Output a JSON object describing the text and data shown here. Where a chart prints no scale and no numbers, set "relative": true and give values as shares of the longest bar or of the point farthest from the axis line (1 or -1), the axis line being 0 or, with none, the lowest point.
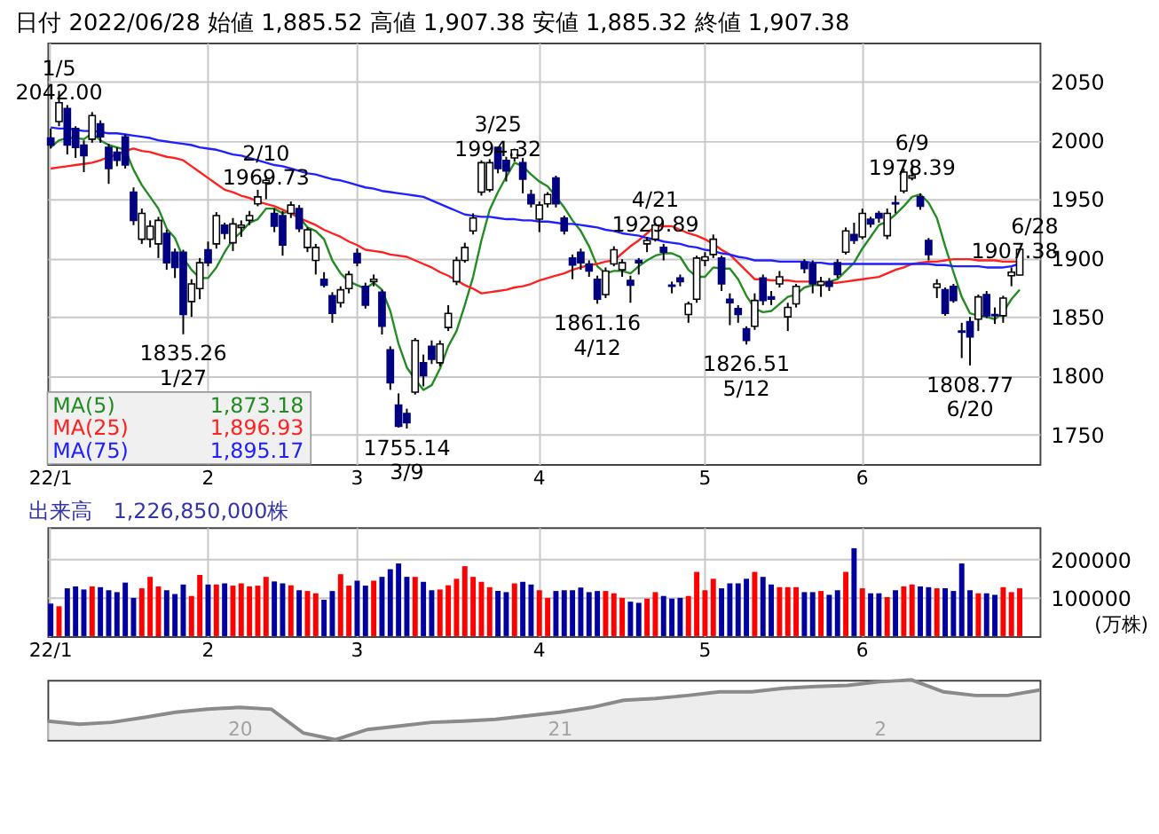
{
  "chart_data": [
    {
      "type": "candlestick",
      "title": "日付 2022/06/28  始値 1,885.52  高値 1,907.38  安値 1,885.32  終値 1,907.38",
      "categories": [
        "22/1",
        null,
        null,
        null,
        null,
        null,
        null,
        null,
        null,
        null,
        null,
        null,
        null,
        null,
        null,
        null,
        null,
        null,
        null,
        "2",
        null,
        null,
        null,
        null,
        null,
        null,
        null,
        null,
        null,
        null,
        null,
        null,
        null,
        null,
        null,
        null,
        null,
        "3",
        null,
        null,
        null,
        null,
        null,
        null,
        null,
        null,
        null,
        null,
        null,
        null,
        null,
        null,
        null,
        null,
        null,
        null,
        null,
        null,
        null,
        "4",
        null,
        null,
        null,
        null,
        null,
        null,
        null,
        null,
        null,
        null,
        null,
        null,
        null,
        null,
        null,
        null,
        null,
        null,
        null,
        "5",
        null,
        null,
        null,
        null,
        null,
        null,
        null,
        null,
        null,
        null,
        null,
        null,
        null,
        null,
        null,
        null,
        null,
        null,
        "6",
        null,
        null,
        null,
        null,
        null,
        null,
        null,
        null,
        null,
        null,
        null,
        null,
        null,
        null,
        null,
        null,
        null,
        null,
        null
      ],
      "ohlc": [
        [
          2002,
          2010,
          1993,
          1996
        ],
        [
          2016,
          2042.0,
          2012,
          2032
        ],
        [
          2027,
          2030,
          1988,
          1996
        ],
        [
          2010,
          2012,
          1985,
          1994
        ],
        [
          1996,
          2000,
          1973,
          1987
        ],
        [
          2001,
          2024,
          1998,
          2021
        ],
        [
          2014,
          2017,
          1998,
          2003
        ],
        [
          1994,
          1997,
          1963,
          1976
        ],
        [
          1990,
          1994,
          1978,
          1983
        ],
        [
          2003,
          2005,
          1976,
          1979
        ],
        [
          1956,
          1960,
          1928,
          1932
        ],
        [
          1916,
          1942,
          1912,
          1938
        ],
        [
          1916,
          1932,
          1909,
          1927
        ],
        [
          1912,
          1935,
          1900,
          1932
        ],
        [
          1921,
          1924,
          1890,
          1896
        ],
        [
          1905,
          1908,
          1883,
          1892
        ],
        [
          1905,
          1907,
          1835.26,
          1852
        ],
        [
          1863,
          1882,
          1850,
          1878
        ],
        [
          1874,
          1900,
          1865,
          1896
        ],
        [
          1907,
          1914,
          1893,
          1896
        ],
        [
          1912,
          1939,
          1908,
          1936
        ],
        [
          1928,
          1930,
          1916,
          1921
        ],
        [
          1913,
          1934,
          1906,
          1929
        ],
        [
          1926,
          1932,
          1918,
          1928
        ],
        [
          1932,
          1940,
          1928,
          1936
        ],
        [
          1946,
          1958,
          1944,
          1952
        ],
        [
          1964,
          1969.73,
          1950,
          1966
        ],
        [
          1938,
          1942,
          1922,
          1927
        ],
        [
          1936,
          1940,
          1902,
          1911
        ],
        [
          1938,
          1948,
          1934,
          1945
        ],
        [
          1942,
          1945,
          1922,
          1925
        ],
        [
          1909,
          1926,
          1905,
          1924
        ],
        [
          1898,
          1912,
          1886,
          1909
        ],
        [
          1882,
          1888,
          1875,
          1877
        ],
        [
          1868,
          1871,
          1845,
          1853
        ],
        [
          1862,
          1876,
          1858,
          1873
        ],
        [
          1874,
          1889,
          1870,
          1886
        ],
        [
          1904,
          1908,
          1893,
          1896
        ],
        [
          1876,
          1879,
          1857,
          1860
        ],
        [
          1880,
          1886,
          1876,
          1882
        ],
        [
          1871,
          1873,
          1835,
          1842
        ],
        [
          1822,
          1825,
          1788,
          1794
        ],
        [
          1775,
          1785,
          1756,
          1757
        ],
        [
          1768,
          1772,
          1755.14,
          1760
        ],
        [
          1786,
          1832,
          1784,
          1830
        ],
        [
          1811,
          1818,
          1791,
          1800
        ],
        [
          1825,
          1830,
          1810,
          1814
        ],
        [
          1811,
          1830,
          1808,
          1827
        ],
        [
          1841,
          1860,
          1838,
          1853
        ],
        [
          1880,
          1901,
          1877,
          1898
        ],
        [
          1898,
          1913,
          1896,
          1909
        ],
        [
          1923,
          1938,
          1920,
          1934
        ],
        [
          1956,
          1983,
          1953,
          1981
        ],
        [
          1958,
          1984,
          1956,
          1981
        ],
        [
          1994,
          1994.32,
          1972,
          1976
        ],
        [
          1983,
          1986,
          1965,
          1974
        ],
        [
          1985,
          1993,
          1982,
          1992
        ],
        [
          1981,
          1985,
          1955,
          1967
        ],
        [
          1954,
          1958,
          1943,
          1946
        ],
        [
          1933,
          1948,
          1922,
          1945
        ],
        [
          1946,
          1956,
          1943,
          1954
        ],
        [
          1968,
          1970,
          1943,
          1946
        ],
        [
          1934,
          1936,
          1920,
          1923
        ],
        [
          1900,
          1903,
          1882,
          1894
        ],
        [
          1905,
          1908,
          1890,
          1896
        ],
        [
          1895,
          1898,
          1884,
          1889
        ],
        [
          1882,
          1885,
          1861.16,
          1865
        ],
        [
          1869,
          1892,
          1866,
          1889
        ],
        [
          1895,
          1910,
          1893,
          1907
        ],
        [
          1890,
          1899,
          1884,
          1896
        ],
        [
          1881,
          1885,
          1862,
          1877
        ],
        [
          1898,
          1900,
          1886,
          1896
        ],
        [
          1912,
          1918,
          1905,
          1915
        ],
        [
          1916,
          1929.89,
          1914,
          1928
        ],
        [
          1909,
          1912,
          1898,
          1905
        ],
        [
          1877,
          1880,
          1870,
          1876
        ],
        [
          1883,
          1886,
          1876,
          1880
        ],
        [
          1852,
          1863,
          1845,
          1861
        ],
        [
          1865,
          1902,
          1862,
          1900
        ],
        [
          1898,
          1905,
          1893,
          1901
        ],
        [
          1903,
          1920,
          1900,
          1916
        ],
        [
          1900,
          1902,
          1872,
          1878
        ],
        [
          1865,
          1870,
          1843,
          1862
        ],
        [
          1857,
          1860,
          1845,
          1852
        ],
        [
          1840,
          1842,
          1826.51,
          1830
        ],
        [
          1842,
          1870,
          1839,
          1864
        ],
        [
          1883,
          1886,
          1860,
          1864
        ],
        [
          1867,
          1872,
          1860,
          1865
        ],
        [
          1878,
          1889,
          1875,
          1884
        ],
        [
          1850,
          1862,
          1838,
          1858
        ],
        [
          1861,
          1878,
          1858,
          1876
        ],
        [
          1896,
          1899,
          1887,
          1891
        ],
        [
          1895,
          1898,
          1870,
          1878
        ],
        [
          1877,
          1884,
          1867,
          1880
        ],
        [
          1880,
          1883,
          1872,
          1876
        ],
        [
          1896,
          1899,
          1883,
          1886
        ],
        [
          1905,
          1926,
          1903,
          1923
        ],
        [
          1920,
          1930,
          1912,
          1915
        ],
        [
          1918,
          1942,
          1916,
          1938
        ],
        [
          1933,
          1935,
          1926,
          1929
        ],
        [
          1938,
          1940,
          1930,
          1934
        ],
        [
          1919,
          1942,
          1916,
          1938
        ],
        [
          1947,
          1953,
          1938,
          1946
        ],
        [
          1957,
          1976,
          1955,
          1973
        ],
        [
          1968,
          1978.39,
          1966,
          1970
        ],
        [
          1952,
          1955,
          1941,
          1944
        ],
        [
          1915,
          1917,
          1898,
          1903
        ],
        [
          1875,
          1882,
          1866,
          1878
        ],
        [
          1873,
          1875,
          1851,
          1853
        ],
        [
          1876,
          1878,
          1862,
          1864
        ],
        [
          1838,
          1845,
          1815,
          1837
        ],
        [
          1846,
          1850,
          1808.77,
          1833
        ],
        [
          1848,
          1869,
          1838,
          1867
        ],
        [
          1869,
          1872,
          1849,
          1851
        ],
        [
          1852,
          1858,
          1844,
          1851
        ],
        [
          1851,
          1868,
          1845,
          1866
        ],
        [
          1885,
          1892,
          1876,
          1888
        ],
        [
          1885.52,
          1907.38,
          1885.32,
          1907.38
        ]
      ],
      "series": [
        {
          "name": "MA(5)",
          "type": "line",
          "color": "#228b22",
          "values": [
            1994,
            2000,
            2002,
            2002,
            2001,
            2006,
            2000,
            1996,
            1994,
            1992,
            1975,
            1962,
            1952,
            1942,
            1925,
            1917,
            1900,
            1890,
            1883,
            1883,
            1892,
            1905,
            1916,
            1922,
            1930,
            1933,
            1942,
            1942,
            1938,
            1940,
            1935,
            1926,
            1923,
            1916,
            1898,
            1887,
            1880,
            1877,
            1874,
            1879,
            1873,
            1855,
            1827,
            1807,
            1797,
            1788,
            1792,
            1806,
            1825,
            1838,
            1860,
            1884,
            1915,
            1941,
            1956,
            1969,
            1981,
            1978,
            1971,
            1965,
            1961,
            1952,
            1943,
            1932,
            1923,
            1910,
            1893,
            1887,
            1889,
            1889,
            1887,
            1893,
            1898,
            1902,
            1904,
            1904,
            1901,
            1890,
            1884,
            1884,
            1892,
            1891,
            1891,
            1882,
            1868,
            1857,
            1854,
            1855,
            1861,
            1867,
            1869,
            1875,
            1877,
            1877,
            1880,
            1882,
            1889,
            1896,
            1908,
            1918,
            1928,
            1931,
            1937,
            1944,
            1952,
            1954,
            1947,
            1934,
            1910,
            1888,
            1867,
            1853,
            1851,
            1850,
            1848,
            1854,
            1865,
            1873.18
          ]
        },
        {
          "name": "MA(25)",
          "type": "line",
          "color": "#ff2020",
          "values": [
            1976,
            1977,
            1978,
            1979,
            1980,
            1981,
            1983,
            1986,
            1988,
            1991,
            1993,
            1991,
            1990,
            1988,
            1986,
            1985,
            1983,
            1978,
            1973,
            1968,
            1963,
            1958,
            1956,
            1953,
            1951,
            1948,
            1946,
            1944,
            1941,
            1938,
            1934,
            1931,
            1928,
            1924,
            1921,
            1918,
            1914,
            1911,
            1907,
            1906,
            1905,
            1903,
            1902,
            1901,
            1898,
            1895,
            1892,
            1888,
            1885,
            1881,
            1877,
            1874,
            1870,
            1871,
            1872,
            1873,
            1875,
            1876,
            1878,
            1881,
            1883,
            1885,
            1887,
            1890,
            1892,
            1894,
            1895,
            1897,
            1898,
            1904,
            1910,
            1915,
            1921,
            1927,
            1927,
            1927,
            1924,
            1921,
            1919,
            1916,
            1912,
            1907,
            1903,
            1896,
            1889,
            1882,
            1882,
            1881,
            1881,
            1881,
            1880,
            1880,
            1880,
            1879,
            1879,
            1879,
            1880,
            1881,
            1882,
            1883,
            1884,
            1887,
            1890,
            1892,
            1895,
            1896,
            1897,
            1897,
            1898,
            1899,
            1899,
            1899,
            1898,
            1898,
            1898,
            1897,
            1897,
            1896.93
          ]
        },
        {
          "name": "MA(75)",
          "type": "line",
          "color": "#2020ff",
          "values": [
            2011,
            2010,
            2010,
            2009,
            2008,
            2008,
            2007,
            2006,
            2006,
            2005,
            2004,
            2003,
            2002,
            2000,
            1999,
            1998,
            1997,
            1996,
            1994,
            1993,
            1992,
            1990,
            1988,
            1987,
            1985,
            1983,
            1981,
            1979,
            1978,
            1976,
            1974,
            1972,
            1971,
            1969,
            1967,
            1966,
            1964,
            1962,
            1960,
            1959,
            1957,
            1956,
            1955,
            1954,
            1953,
            1952,
            1949,
            1946,
            1943,
            1940,
            1937,
            1936,
            1935,
            1935,
            1934,
            1933,
            1933,
            1932,
            1932,
            1931,
            1931,
            1930,
            1929,
            1929,
            1928,
            1927,
            1926,
            1924,
            1923,
            1921,
            1920,
            1919,
            1917,
            1916,
            1914,
            1913,
            1912,
            1910,
            1909,
            1907,
            1906,
            1904,
            1903,
            1901,
            1900,
            1898,
            1898,
            1898,
            1897,
            1897,
            1897,
            1897,
            1896,
            1896,
            1895,
            1895,
            1895,
            1895,
            1895,
            1895,
            1895,
            1895,
            1895,
            1895,
            1895,
            1895,
            1895,
            1894,
            1894,
            1893,
            1893,
            1893,
            1893,
            1892,
            1892,
            1892,
            1893,
            1895.17
          ]
        }
      ],
      "ylim": [
        1725,
        2083
      ],
      "yticks": [
        1750,
        1800,
        1850,
        1900,
        1950,
        2000,
        2050
      ],
      "grid": true,
      "legend": "bottom left",
      "annotations": [
        {
          "text": "1/5\n2042.00",
          "y": 2042.0
        },
        {
          "text": "1835.26\n1/27",
          "y": 1835.26
        },
        {
          "text": "2/10\n1969.73",
          "y": 1969.73
        },
        {
          "text": "1755.14\n3/9",
          "y": 1755.14
        },
        {
          "text": "3/25\n1994.32",
          "y": 1994.32
        },
        {
          "text": "1861.16\n4/12",
          "y": 1861.16
        },
        {
          "text": "4/21\n1929.89",
          "y": 1929.89
        },
        {
          "text": "1826.51\n5/12",
          "y": 1826.51
        },
        {
          "text": "6/9\n1978.39",
          "y": 1978.39
        },
        {
          "text": "1808.77\n6/20",
          "y": 1808.77
        },
        {
          "text": "6/28\n1907.38",
          "y": 1907.38
        },
        "1,873.18",
        "1,896.93",
        "1,895.17"
      ]
    },
    {
      "type": "bar",
      "title": "出来高　1,226,850,000株",
      "categories": [
        "22/1",
        null,
        null,
        null,
        null,
        null,
        null,
        null,
        null,
        null,
        null,
        null,
        null,
        null,
        null,
        null,
        null,
        null,
        null,
        "2",
        null,
        null,
        null,
        null,
        null,
        null,
        null,
        null,
        null,
        null,
        null,
        null,
        null,
        null,
        null,
        null,
        null,
        "3",
        null,
        null,
        null,
        null,
        null,
        null,
        null,
        null,
        null,
        null,
        null,
        null,
        null,
        null,
        null,
        null,
        null,
        null,
        null,
        null,
        null,
        "4",
        null,
        null,
        null,
        null,
        null,
        null,
        null,
        null,
        null,
        null,
        null,
        null,
        null,
        null,
        null,
        null,
        null,
        null,
        null,
        "5",
        null,
        null,
        null,
        null,
        null,
        null,
        null,
        null,
        null,
        null,
        null,
        null,
        null,
        null,
        null,
        null,
        null,
        null,
        "6",
        null,
        null,
        null,
        null,
        null,
        null,
        null,
        null,
        null,
        null,
        null,
        null,
        null,
        null,
        null,
        null,
        null,
        null,
        null
      ],
      "values": [
        85000,
        78000,
        125000,
        130000,
        122000,
        130000,
        128000,
        120000,
        115000,
        140000,
        100000,
        125000,
        155000,
        130000,
        120000,
        110000,
        135000,
        105000,
        160000,
        135000,
        135000,
        138000,
        132000,
        138000,
        130000,
        132000,
        155000,
        143000,
        138000,
        133000,
        120000,
        118000,
        112000,
        95000,
        118000,
        162000,
        132000,
        145000,
        132000,
        145000,
        155000,
        175000,
        190000,
        155000,
        155000,
        142000,
        120000,
        122000,
        133000,
        150000,
        183000,
        155000,
        142000,
        128000,
        118000,
        115000,
        138000,
        142000,
        135000,
        120000,
        100000,
        118000,
        120000,
        120000,
        127000,
        115000,
        118000,
        118000,
        112000,
        100000,
        90000,
        87000,
        98000,
        115000,
        105000,
        98000,
        100000,
        105000,
        168000,
        120000,
        150000,
        125000,
        138000,
        138000,
        150000,
        168000,
        155000,
        135000,
        128000,
        128000,
        128000,
        115000,
        115000,
        118000,
        108000,
        120000,
        168000,
        230000,
        125000,
        112000,
        112000,
        102000,
        120000,
        130000,
        135000,
        130000,
        128000,
        125000,
        125000,
        118000,
        190000,
        120000,
        112000,
        112000,
        108000,
        128000,
        115000,
        125000
      ],
      "colors": [
        "#0000a0",
        "#ff0000",
        "#0000a0",
        "#0000a0",
        "#0000a0",
        "#ff0000",
        "#0000a0",
        "#0000a0",
        "#0000a0",
        "#0000a0",
        "#0000a0",
        "#ff0000",
        "#ff0000",
        "#ff0000",
        "#0000a0",
        "#0000a0",
        "#0000a0",
        "#ff0000",
        "#ff0000",
        "#0000a0",
        "#ff0000",
        "#0000a0",
        "#ff0000",
        "#ff0000",
        "#ff0000",
        "#ff0000",
        "#ff0000",
        "#0000a0",
        "#0000a0",
        "#ff0000",
        "#0000a0",
        "#ff0000",
        "#ff0000",
        "#0000a0",
        "#0000a0",
        "#ff0000",
        "#ff0000",
        "#0000a0",
        "#0000a0",
        "#ff0000",
        "#0000a0",
        "#0000a0",
        "#0000a0",
        "#0000a0",
        "#ff0000",
        "#0000a0",
        "#0000a0",
        "#ff0000",
        "#ff0000",
        "#ff0000",
        "#ff0000",
        "#ff0000",
        "#ff0000",
        "#ff0000",
        "#0000a0",
        "#0000a0",
        "#ff0000",
        "#0000a0",
        "#0000a0",
        "#ff0000",
        "#ff0000",
        "#0000a0",
        "#0000a0",
        "#0000a0",
        "#0000a0",
        "#0000a0",
        "#0000a0",
        "#ff0000",
        "#ff0000",
        "#ff0000",
        "#0000a0",
        "#0000a0",
        "#ff0000",
        "#ff0000",
        "#0000a0",
        "#0000a0",
        "#0000a0",
        "#ff0000",
        "#ff0000",
        "#ff0000",
        "#ff0000",
        "#0000a0",
        "#0000a0",
        "#0000a0",
        "#0000a0",
        "#ff0000",
        "#0000a0",
        "#0000a0",
        "#ff0000",
        "#ff0000",
        "#ff0000",
        "#0000a0",
        "#0000a0",
        "#ff0000",
        "#0000a0",
        "#0000a0",
        "#ff0000",
        "#0000a0",
        "#ff0000",
        "#0000a0",
        "#0000a0",
        "#ff0000",
        "#0000a0",
        "#ff0000",
        "#ff0000",
        "#0000a0",
        "#0000a0",
        "#ff0000",
        "#0000a0",
        "#0000a0",
        "#0000a0",
        "#0000a0",
        "#ff0000",
        "#0000a0",
        "#0000a0",
        "#ff0000",
        "#ff0000",
        "#ff0000"
      ],
      "ylim": [
        0,
        285000
      ],
      "yticks": [
        100000,
        200000
      ],
      "grid": true,
      "annotations": [
        "(万株)"
      ]
    },
    {
      "type": "area",
      "relative": true,
      "color": "#8a8a8a",
      "categories": [
        null,
        null,
        null,
        null,
        null,
        null,
        "20",
        null,
        null,
        null,
        null,
        null,
        null,
        null,
        null,
        null,
        "21",
        null,
        null,
        null,
        null,
        null,
        null,
        null,
        null,
        null,
        "2",
        null,
        null,
        null,
        null,
        null
      ],
      "values": [
        0.31,
        0.26,
        0.29,
        0.37,
        0.46,
        0.51,
        0.54,
        0.51,
        0.11,
        0,
        0.17,
        0.23,
        0.29,
        0.31,
        0.34,
        0.4,
        0.46,
        0.54,
        0.66,
        0.69,
        0.74,
        0.8,
        0.8,
        0.86,
        0.89,
        0.91,
        0.97,
        1,
        0.8,
        0.74,
        0.74,
        0.83
      ]
    }
  ]
}
